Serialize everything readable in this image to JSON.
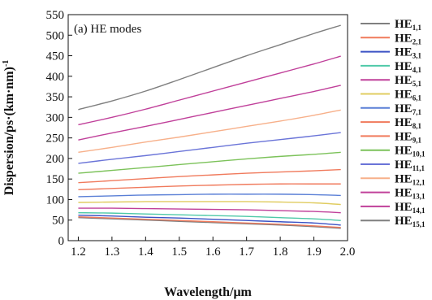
{
  "chart_data": {
    "type": "line",
    "title": "(a) HE modes",
    "xlabel": "Wavelength/μm",
    "ylabel": "Dispersion/ps·(km·nm)",
    "ylabel_superscript": "-1",
    "xlim": [
      1.17,
      2.0
    ],
    "ylim": [
      0,
      550
    ],
    "xticks": [
      "1.2",
      "1.3",
      "1.4",
      "1.5",
      "1.6",
      "1.7",
      "1.8",
      "1.9",
      "2.0"
    ],
    "xtick_values": [
      1.2,
      1.3,
      1.4,
      1.5,
      1.6,
      1.7,
      1.8,
      1.9,
      2.0
    ],
    "yticks": [
      "0",
      "50",
      "100",
      "150",
      "200",
      "250",
      "300",
      "350",
      "400",
      "450",
      "500",
      "550"
    ],
    "ytick_values": [
      0,
      50,
      100,
      150,
      200,
      250,
      300,
      350,
      400,
      450,
      500,
      550
    ],
    "grid": false,
    "legend_position": "right",
    "x": [
      1.2,
      1.3,
      1.4,
      1.5,
      1.6,
      1.7,
      1.8,
      1.9,
      1.98
    ],
    "series": [
      {
        "name": "HE",
        "sub": "1,1",
        "color": "#7f7f7f",
        "values": [
          56,
          53,
          50,
          47,
          44,
          41,
          38,
          34,
          30
        ]
      },
      {
        "name": "HE",
        "sub": "2,1",
        "color": "#f07a5c",
        "values": [
          58,
          55,
          52,
          49,
          46,
          43,
          40,
          36,
          32
        ]
      },
      {
        "name": "HE",
        "sub": "3,1",
        "color": "#3b52c4",
        "values": [
          62,
          60,
          57,
          55,
          52,
          49,
          46,
          43,
          38
        ]
      },
      {
        "name": "HE",
        "sub": "4,1",
        "color": "#4fc9a8",
        "values": [
          68,
          67,
          65,
          63,
          61,
          59,
          56,
          53,
          49
        ]
      },
      {
        "name": "HE",
        "sub": "5,1",
        "color": "#c0409a",
        "values": [
          79,
          79,
          78,
          77,
          76,
          75,
          73,
          71,
          68
        ]
      },
      {
        "name": "HE",
        "sub": "6,1",
        "color": "#e0cc60",
        "values": [
          93,
          94,
          95,
          95,
          95,
          95,
          94,
          92,
          88
        ]
      },
      {
        "name": "HE",
        "sub": "7,1",
        "color": "#5a7fd6",
        "values": [
          107,
          109,
          111,
          112,
          113,
          113,
          113,
          112,
          110
        ]
      },
      {
        "name": "HE",
        "sub": "8,1",
        "color": "#f07a5c",
        "values": [
          124,
          127,
          130,
          133,
          135,
          137,
          138,
          138,
          138
        ]
      },
      {
        "name": "HE",
        "sub": "9,1",
        "color": "#f07a5c",
        "values": [
          141,
          146,
          151,
          156,
          160,
          164,
          167,
          170,
          173
        ]
      },
      {
        "name": "HE",
        "sub": "10,1",
        "color": "#7cc25a",
        "values": [
          164,
          171,
          178,
          185,
          192,
          199,
          205,
          210,
          215
        ]
      },
      {
        "name": "HE",
        "sub": "11,1",
        "color": "#6a74d8",
        "values": [
          188,
          198,
          207,
          217,
          227,
          237,
          246,
          255,
          263
        ]
      },
      {
        "name": "HE",
        "sub": "12,1",
        "color": "#f7b08a",
        "values": [
          215,
          227,
          240,
          252,
          265,
          278,
          291,
          305,
          318
        ]
      },
      {
        "name": "HE",
        "sub": "13,1",
        "color": "#c0409a",
        "values": [
          245,
          262,
          278,
          295,
          312,
          329,
          346,
          363,
          378
        ]
      },
      {
        "name": "HE",
        "sub": "14,1",
        "color": "#c0409a",
        "values": [
          282,
          300,
          320,
          342,
          364,
          386,
          408,
          430,
          449
        ]
      },
      {
        "name": "HE",
        "sub": "15,1",
        "color": "#7f7f7f",
        "values": [
          319,
          340,
          364,
          392,
          421,
          450,
          477,
          504,
          524
        ]
      }
    ]
  }
}
